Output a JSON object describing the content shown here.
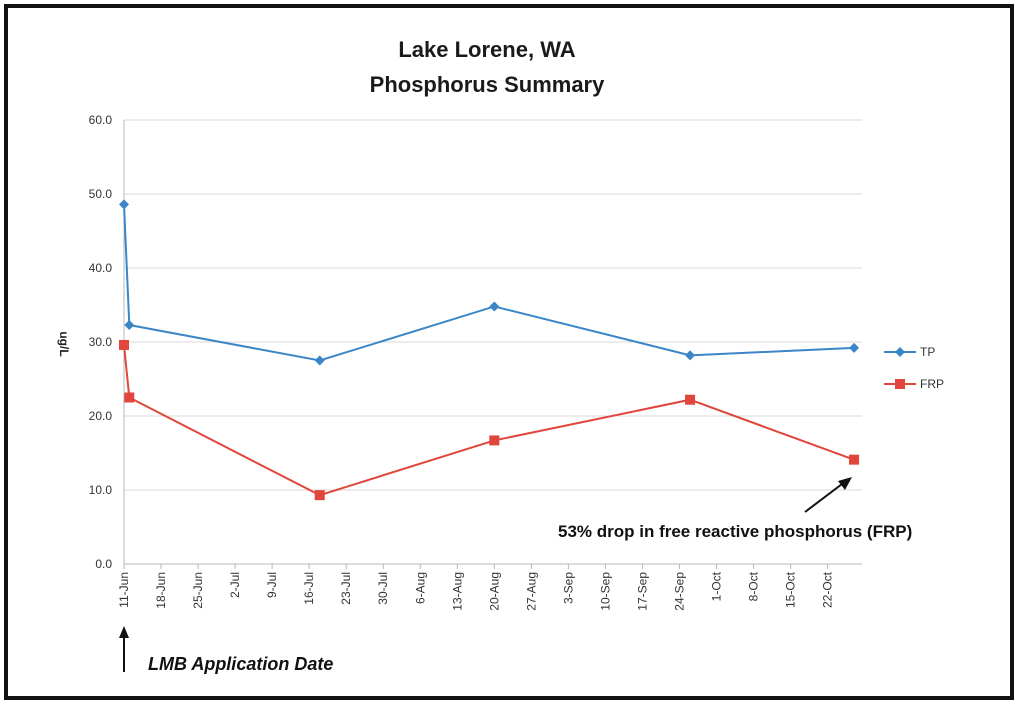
{
  "chart_data": {
    "type": "line",
    "title": "Lake Lorene, WA",
    "subtitle": "Phosphorus Summary",
    "ylabel": "ug/L",
    "xlabel": "",
    "ylim": [
      0,
      60
    ],
    "yticks": [
      "0.0",
      "10.0",
      "20.0",
      "30.0",
      "40.0",
      "50.0",
      "60.0"
    ],
    "categories": [
      "11-Jun",
      "18-Jun",
      "25-Jun",
      "2-Jul",
      "9-Jul",
      "16-Jul",
      "23-Jul",
      "30-Jul",
      "6-Aug",
      "13-Aug",
      "20-Aug",
      "27-Aug",
      "3-Sep",
      "10-Sep",
      "17-Sep",
      "24-Sep",
      "1-Oct",
      "8-Oct",
      "15-Oct",
      "22-Oct"
    ],
    "grid": true,
    "legend_position": "right",
    "series": [
      {
        "name": "TP",
        "color": "#3a86c8",
        "marker": "diamond",
        "points": [
          {
            "x": "11-Jun",
            "y": 48.6
          },
          {
            "x": "12-Jun",
            "y": 32.3
          },
          {
            "x": "18-Jul",
            "y": 27.5
          },
          {
            "x": "20-Aug",
            "y": 34.8
          },
          {
            "x": "26-Sep",
            "y": 28.2
          },
          {
            "x": "27-Oct",
            "y": 29.2
          }
        ]
      },
      {
        "name": "FRP",
        "color": "#e0463b",
        "marker": "square",
        "points": [
          {
            "x": "11-Jun",
            "y": 29.6
          },
          {
            "x": "12-Jun",
            "y": 22.5
          },
          {
            "x": "18-Jul",
            "y": 9.3
          },
          {
            "x": "20-Aug",
            "y": 16.7
          },
          {
            "x": "26-Sep",
            "y": 22.2
          },
          {
            "x": "27-Oct",
            "y": 14.1
          }
        ]
      }
    ],
    "annotations": [
      {
        "text": "53% drop in free reactive phosphorus (FRP)",
        "arrow_to": {
          "x": "27-Oct",
          "y": 11.5
        }
      },
      {
        "text": "LMB Application Date",
        "arrow_to": {
          "x": "11-Jun",
          "y": 0
        }
      }
    ]
  }
}
